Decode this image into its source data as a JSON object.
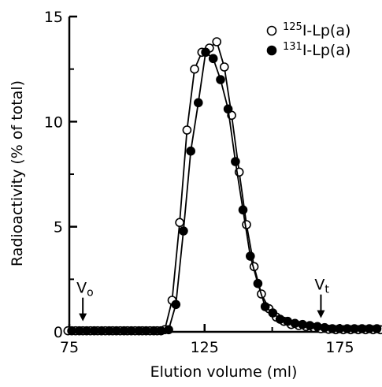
{
  "chart_data": {
    "type": "scatter",
    "title": "",
    "xlabel": "Elution volume (ml)",
    "ylabel": "Radioactivity (% of total)",
    "xlim": [
      75,
      190
    ],
    "ylim": [
      0,
      15
    ],
    "x_ticks": [
      "75",
      "125",
      "175"
    ],
    "x_tick_values": [
      75,
      125,
      175
    ],
    "y_ticks": [
      "0",
      "5",
      "10",
      "15"
    ],
    "y_tick_values": [
      0,
      5,
      10,
      15
    ],
    "grid": false,
    "legend_position": "top-right",
    "series": [
      {
        "name_prefix": "125",
        "name_suffix": "I-Lp(a)",
        "marker": "open-circle",
        "x": [
          74.5,
          77.3,
          80,
          82.8,
          85.5,
          88.3,
          91,
          93.8,
          96.5,
          99.3,
          102,
          104.8,
          107.5,
          110.3,
          113,
          115.8,
          118.5,
          121.3,
          124,
          126.8,
          129.5,
          132.3,
          135,
          137.8,
          140.5,
          143.3,
          146,
          148.8,
          151.5,
          154.3,
          157,
          159.8,
          162.5,
          165.3,
          168,
          170.8,
          173.5,
          176.3,
          179,
          181.8,
          184.5,
          187.3,
          190
        ],
        "y": [
          0.05,
          0.05,
          0.05,
          0.05,
          0.05,
          0.05,
          0.05,
          0.05,
          0.05,
          0.05,
          0.05,
          0.05,
          0.05,
          0.1,
          1.5,
          5.2,
          9.6,
          12.5,
          13.3,
          13.5,
          13.8,
          12.6,
          10.3,
          7.6,
          5.1,
          3.1,
          1.8,
          1.1,
          0.7,
          0.5,
          0.35,
          0.3,
          0.25,
          0.2,
          0.15,
          0.12,
          0.1,
          0.1,
          0.1,
          0.1,
          0.1,
          0.1,
          0.1
        ]
      },
      {
        "name_prefix": "131",
        "name_suffix": "I-Lp(a)",
        "marker": "filled-circle",
        "x": [
          75.9,
          78.7,
          81.4,
          84.2,
          86.9,
          89.7,
          92.4,
          95.2,
          97.9,
          100.7,
          103.4,
          106.2,
          108.9,
          111.7,
          114.4,
          117.2,
          119.9,
          122.7,
          125.4,
          128.2,
          130.9,
          133.7,
          136.4,
          139.2,
          141.9,
          144.7,
          147.4,
          150.2,
          152.9,
          155.7,
          158.4,
          161.2,
          163.9,
          166.7,
          169.4,
          172.2,
          174.9,
          177.7,
          180.4,
          183.2,
          185.9,
          188.7
        ],
        "y": [
          0.05,
          0.05,
          0.05,
          0.05,
          0.05,
          0.05,
          0.05,
          0.05,
          0.05,
          0.05,
          0.05,
          0.05,
          0.05,
          0.1,
          1.3,
          4.8,
          8.6,
          10.9,
          13.3,
          13.0,
          12.0,
          10.6,
          8.1,
          5.8,
          3.6,
          2.3,
          1.2,
          0.9,
          0.6,
          0.5,
          0.4,
          0.35,
          0.3,
          0.25,
          0.2,
          0.15,
          0.15,
          0.15,
          0.15,
          0.15,
          0.15,
          0.15
        ]
      }
    ],
    "annotations": [
      {
        "label": "V",
        "sub": "o",
        "x": 80,
        "y": 0.05
      },
      {
        "label": "V",
        "sub": "t",
        "x": 168,
        "y": 0.2
      }
    ]
  }
}
